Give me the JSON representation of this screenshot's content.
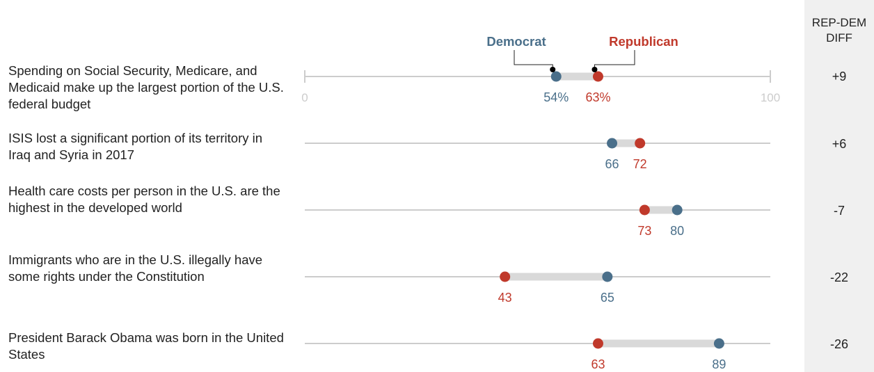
{
  "chart_data": {
    "type": "dot",
    "axis": {
      "min": 0,
      "max": 100,
      "tick_labels": [
        "0",
        "100"
      ]
    },
    "legend": {
      "democrat": "Democrat",
      "republican": "Republican"
    },
    "diff_header": [
      "REP-DEM",
      "DIFF"
    ],
    "colors": {
      "democrat": "#4a6f8a",
      "republican": "#c0392b",
      "connector": "#d9d9d9",
      "axis": "#cccccc",
      "diff_panel": "#f0f0f0"
    },
    "rows": [
      {
        "label": "Spending on Social Security, Medicare, and Medicaid make up the largest portion of the U.S. federal budget",
        "democrat": 54,
        "republican": 63,
        "democrat_label": "54%",
        "republican_label": "63%",
        "diff": "+9"
      },
      {
        "label": "ISIS lost a significant portion of its territory in Iraq and Syria in 2017",
        "democrat": 66,
        "republican": 72,
        "democrat_label": "66",
        "republican_label": "72",
        "diff": "+6"
      },
      {
        "label": "Health care costs per person in the U.S. are the highest in the developed world",
        "democrat": 80,
        "republican": 73,
        "democrat_label": "80",
        "republican_label": "73",
        "diff": "-7"
      },
      {
        "label": "Immigrants who are in the U.S. illegally have some rights under the Constitution",
        "democrat": 65,
        "republican": 43,
        "democrat_label": "65",
        "republican_label": "43",
        "diff": "-22"
      },
      {
        "label": "President Barack Obama was born in the United States",
        "democrat": 89,
        "republican": 63,
        "democrat_label": "89",
        "republican_label": "63",
        "diff": "-26"
      }
    ]
  }
}
